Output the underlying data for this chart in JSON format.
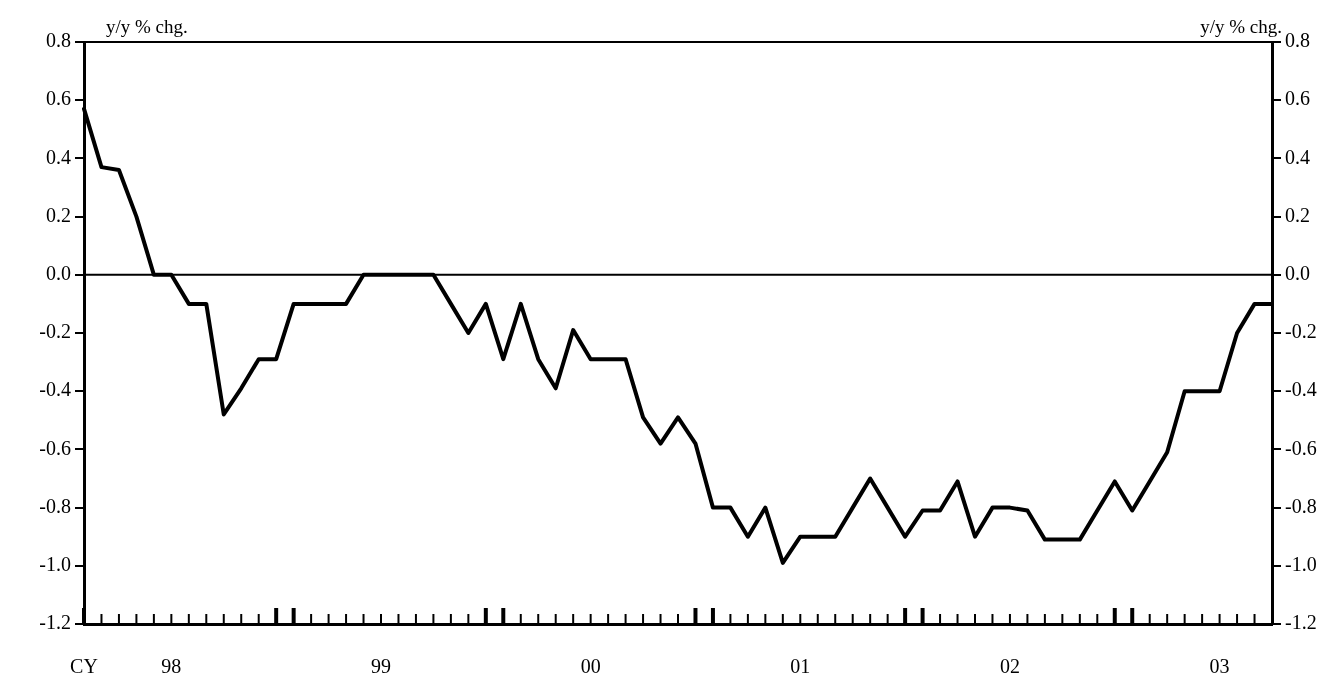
{
  "chart_data": {
    "type": "line",
    "ylabel": "y/y % chg.",
    "y2label": "y/y % chg.",
    "categories": [
      "CY",
      null,
      null,
      null,
      null,
      "98",
      null,
      null,
      null,
      null,
      null,
      null,
      null,
      null,
      null,
      null,
      null,
      "99",
      null,
      null,
      null,
      null,
      null,
      null,
      null,
      null,
      null,
      null,
      null,
      "00",
      null,
      null,
      null,
      null,
      null,
      null,
      null,
      null,
      null,
      null,
      null,
      "01",
      null,
      null,
      null,
      null,
      null,
      null,
      null,
      null,
      null,
      null,
      null,
      "02",
      null,
      null,
      null,
      null,
      null,
      null,
      null,
      null,
      null,
      null,
      null,
      "03",
      null,
      null,
      null
    ],
    "series": [
      {
        "color": "#000000",
        "values": [
          0.57,
          0.37,
          0.36,
          0.2,
          0,
          0,
          -0.1,
          -0.1,
          -0.48,
          -0.39,
          -0.29,
          -0.29,
          -0.1,
          -0.1,
          -0.1,
          -0.1,
          0,
          0,
          0,
          0,
          0,
          -0.1,
          -0.2,
          -0.1,
          -0.29,
          -0.1,
          -0.29,
          -0.39,
          -0.19,
          -0.29,
          -0.29,
          -0.29,
          -0.49,
          -0.58,
          -0.49,
          -0.58,
          -0.8,
          -0.8,
          -0.9,
          -0.8,
          -0.99,
          -0.9,
          -0.9,
          -0.9,
          -0.8,
          -0.7,
          -0.8,
          -0.9,
          -0.81,
          -0.81,
          -0.71,
          -0.9,
          -0.8,
          -0.8,
          -0.81,
          -0.91,
          -0.91,
          -0.91,
          -0.81,
          -0.71,
          -0.81,
          -0.71,
          -0.61,
          -0.4,
          -0.4,
          -0.4,
          -0.2,
          -0.1,
          -0.1
        ]
      }
    ],
    "ylim": [
      -1.2,
      0.8
    ],
    "yticks": [
      {
        "value": -1.2,
        "label": "-1.2"
      },
      {
        "value": -1.0,
        "label": "-1.0"
      },
      {
        "value": -0.8,
        "label": "-0.8"
      },
      {
        "value": -0.6,
        "label": "-0.6"
      },
      {
        "value": -0.4,
        "label": "-0.4"
      },
      {
        "value": -0.2,
        "label": "-0.2"
      },
      {
        "value": 0,
        "label": "0.0"
      },
      {
        "value": 0.2,
        "label": "0.2"
      },
      {
        "value": 0.4,
        "label": "0.4"
      },
      {
        "value": 0.6,
        "label": "0.6"
      },
      {
        "value": 0.8,
        "label": "0.8"
      }
    ],
    "y2lim": [
      -1.2,
      0.8
    ],
    "y2ticks": [
      {
        "value": -1.2,
        "label": "-1.2"
      },
      {
        "value": -1.0,
        "label": "-1.0"
      },
      {
        "value": -0.8,
        "label": "-0.8"
      },
      {
        "value": -0.6,
        "label": "-0.6"
      },
      {
        "value": -0.4,
        "label": "-0.4"
      },
      {
        "value": -0.2,
        "label": "-0.2"
      },
      {
        "value": 0,
        "label": "0.0"
      },
      {
        "value": 0.2,
        "label": "0.2"
      },
      {
        "value": 0.4,
        "label": "0.4"
      },
      {
        "value": 0.6,
        "label": "0.6"
      },
      {
        "value": 0.8,
        "label": "0.8"
      }
    ],
    "ref_lines": [
      {
        "axis": "y",
        "value": 0,
        "color": "#000000"
      }
    ],
    "line_style": "solid",
    "legend": false
  }
}
